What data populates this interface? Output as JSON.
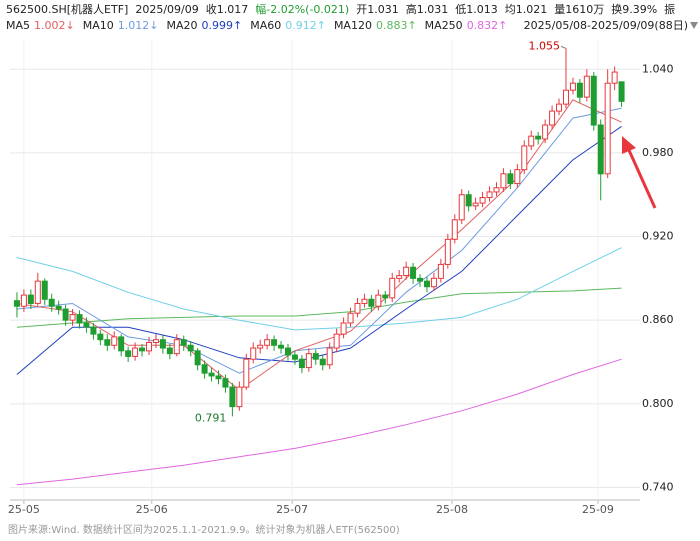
{
  "chart_data": {
    "type": "candlestick",
    "header": [
      "562500.SH[机器人ETF]",
      "2025/09/09",
      "收1.017",
      "幅-2.02%(-0.021)",
      "开1.031",
      "高1.031",
      "低1.013",
      "均1.021",
      "量1610万",
      "换9.39%",
      "振"
    ],
    "range_label": "2025/05/08-2025/09/09(88日)",
    "footer": "图片来源:Wind. 数据统计区间为2025.1.1-2021.9.9。统计对象为机器人ETF(562500)",
    "up_color": "#e8383d",
    "down_color": "#1f9d31",
    "candles": [
      [
        0.874,
        0.88,
        0.862,
        0.87
      ],
      [
        0.87,
        0.882,
        0.866,
        0.878
      ],
      [
        0.878,
        0.882,
        0.868,
        0.872
      ],
      [
        0.872,
        0.894,
        0.87,
        0.888
      ],
      [
        0.888,
        0.89,
        0.871,
        0.875
      ],
      [
        0.875,
        0.879,
        0.866,
        0.87
      ],
      [
        0.87,
        0.874,
        0.864,
        0.868
      ],
      [
        0.868,
        0.871,
        0.856,
        0.86
      ],
      [
        0.86,
        0.868,
        0.856,
        0.864
      ],
      [
        0.864,
        0.867,
        0.854,
        0.858
      ],
      [
        0.858,
        0.862,
        0.851,
        0.855
      ],
      [
        0.855,
        0.858,
        0.846,
        0.85
      ],
      [
        0.85,
        0.853,
        0.842,
        0.846
      ],
      [
        0.846,
        0.85,
        0.838,
        0.842
      ],
      [
        0.842,
        0.852,
        0.839,
        0.848
      ],
      [
        0.848,
        0.85,
        0.834,
        0.838
      ],
      [
        0.838,
        0.841,
        0.83,
        0.834
      ],
      [
        0.834,
        0.844,
        0.831,
        0.84
      ],
      [
        0.84,
        0.843,
        0.834,
        0.838
      ],
      [
        0.838,
        0.848,
        0.835,
        0.844
      ],
      [
        0.844,
        0.85,
        0.84,
        0.846
      ],
      [
        0.846,
        0.849,
        0.836,
        0.84
      ],
      [
        0.84,
        0.843,
        0.832,
        0.836
      ],
      [
        0.836,
        0.85,
        0.834,
        0.846
      ],
      [
        0.846,
        0.849,
        0.838,
        0.842
      ],
      [
        0.842,
        0.845,
        0.834,
        0.838
      ],
      [
        0.838,
        0.84,
        0.824,
        0.828
      ],
      [
        0.828,
        0.831,
        0.818,
        0.822
      ],
      [
        0.822,
        0.826,
        0.816,
        0.82
      ],
      [
        0.82,
        0.824,
        0.814,
        0.818
      ],
      [
        0.818,
        0.821,
        0.808,
        0.812
      ],
      [
        0.812,
        0.815,
        0.791,
        0.798
      ],
      [
        0.798,
        0.816,
        0.795,
        0.812
      ],
      [
        0.812,
        0.836,
        0.81,
        0.832
      ],
      [
        0.832,
        0.844,
        0.829,
        0.84
      ],
      [
        0.84,
        0.846,
        0.836,
        0.842
      ],
      [
        0.842,
        0.85,
        0.839,
        0.846
      ],
      [
        0.846,
        0.849,
        0.838,
        0.842
      ],
      [
        0.842,
        0.845,
        0.836,
        0.84
      ],
      [
        0.84,
        0.843,
        0.831,
        0.835
      ],
      [
        0.835,
        0.838,
        0.828,
        0.832
      ],
      [
        0.832,
        0.835,
        0.822,
        0.826
      ],
      [
        0.826,
        0.84,
        0.823,
        0.836
      ],
      [
        0.836,
        0.839,
        0.828,
        0.832
      ],
      [
        0.832,
        0.835,
        0.824,
        0.828
      ],
      [
        0.828,
        0.844,
        0.825,
        0.84
      ],
      [
        0.84,
        0.854,
        0.837,
        0.85
      ],
      [
        0.85,
        0.862,
        0.847,
        0.858
      ],
      [
        0.858,
        0.869,
        0.855,
        0.865
      ],
      [
        0.865,
        0.876,
        0.862,
        0.872
      ],
      [
        0.872,
        0.879,
        0.869,
        0.875
      ],
      [
        0.875,
        0.878,
        0.866,
        0.87
      ],
      [
        0.87,
        0.882,
        0.867,
        0.878
      ],
      [
        0.878,
        0.881,
        0.872,
        0.876
      ],
      [
        0.876,
        0.894,
        0.873,
        0.89
      ],
      [
        0.89,
        0.896,
        0.887,
        0.892
      ],
      [
        0.892,
        0.902,
        0.889,
        0.898
      ],
      [
        0.898,
        0.901,
        0.886,
        0.89
      ],
      [
        0.89,
        0.893,
        0.884,
        0.888
      ],
      [
        0.888,
        0.891,
        0.88,
        0.884
      ],
      [
        0.884,
        0.894,
        0.881,
        0.89
      ],
      [
        0.89,
        0.904,
        0.887,
        0.9
      ],
      [
        0.9,
        0.922,
        0.897,
        0.918
      ],
      [
        0.918,
        0.936,
        0.915,
        0.932
      ],
      [
        0.932,
        0.954,
        0.929,
        0.95
      ],
      [
        0.95,
        0.953,
        0.938,
        0.942
      ],
      [
        0.942,
        0.948,
        0.939,
        0.944
      ],
      [
        0.944,
        0.952,
        0.941,
        0.948
      ],
      [
        0.948,
        0.956,
        0.945,
        0.952
      ],
      [
        0.952,
        0.959,
        0.949,
        0.955
      ],
      [
        0.955,
        0.969,
        0.952,
        0.965
      ],
      [
        0.965,
        0.968,
        0.954,
        0.958
      ],
      [
        0.958,
        0.972,
        0.955,
        0.968
      ],
      [
        0.968,
        0.989,
        0.965,
        0.985
      ],
      [
        0.985,
        0.996,
        0.982,
        0.992
      ],
      [
        0.992,
        0.995,
        0.986,
        0.99
      ],
      [
        0.99,
        1.004,
        0.987,
        1.0
      ],
      [
        1.0,
        1.014,
        0.997,
        1.01
      ],
      [
        1.01,
        1.019,
        1.007,
        1.015
      ],
      [
        1.015,
        1.055,
        1.012,
        1.025
      ],
      [
        1.025,
        1.034,
        1.022,
        1.03
      ],
      [
        1.03,
        1.033,
        1.016,
        1.02
      ],
      [
        1.02,
        1.04,
        1.017,
        1.035
      ],
      [
        1.035,
        1.038,
        0.996,
        1.0
      ],
      [
        1.0,
        1.004,
        0.946,
        0.965
      ],
      [
        0.965,
        1.04,
        0.962,
        1.03
      ],
      [
        1.03,
        1.042,
        1.025,
        1.038
      ],
      [
        1.031,
        1.031,
        1.013,
        1.017
      ]
    ],
    "series": [
      {
        "name": "MA5",
        "color": "#e06060",
        "legend_label": "1.002↓",
        "x": [
          0,
          8,
          16,
          24,
          32,
          40,
          48,
          56,
          64,
          72,
          80,
          87
        ],
        "values": [
          0.872,
          0.866,
          0.842,
          0.842,
          0.81,
          0.838,
          0.852,
          0.89,
          0.925,
          0.962,
          1.018,
          1.002
        ]
      },
      {
        "name": "MA10",
        "color": "#6e9be0",
        "legend_label": "1.012↓",
        "x": [
          0,
          8,
          16,
          24,
          32,
          40,
          48,
          56,
          64,
          72,
          80,
          87
        ],
        "values": [
          0.868,
          0.872,
          0.848,
          0.842,
          0.822,
          0.838,
          0.842,
          0.88,
          0.91,
          0.955,
          1.005,
          1.012
        ]
      },
      {
        "name": "MA20",
        "color": "#1f3fbf",
        "legend_label": "0.999↑",
        "x": [
          0,
          8,
          16,
          24,
          32,
          40,
          48,
          56,
          64,
          72,
          80,
          87
        ],
        "values": [
          0.821,
          0.855,
          0.855,
          0.846,
          0.833,
          0.83,
          0.84,
          0.868,
          0.895,
          0.935,
          0.975,
          0.999
        ]
      },
      {
        "name": "MA60",
        "color": "#6fd0e8",
        "legend_label": "0.912↑",
        "x": [
          0,
          8,
          16,
          24,
          32,
          40,
          48,
          56,
          64,
          72,
          80,
          87
        ],
        "values": [
          0.905,
          0.895,
          0.88,
          0.868,
          0.86,
          0.853,
          0.855,
          0.858,
          0.862,
          0.875,
          0.895,
          0.912
        ]
      },
      {
        "name": "MA120",
        "color": "#5cb85c",
        "legend_label": "0.883↑",
        "x": [
          0,
          8,
          16,
          24,
          32,
          40,
          48,
          56,
          64,
          72,
          80,
          87
        ],
        "values": [
          0.855,
          0.858,
          0.861,
          0.862,
          0.863,
          0.863,
          0.866,
          0.873,
          0.879,
          0.88,
          0.881,
          0.883
        ]
      },
      {
        "name": "MA250",
        "color": "#e066e0",
        "legend_label": "0.832↑",
        "x": [
          0,
          8,
          16,
          24,
          32,
          40,
          48,
          56,
          64,
          72,
          80,
          87
        ],
        "values": [
          0.742,
          0.746,
          0.751,
          0.756,
          0.762,
          0.768,
          0.776,
          0.785,
          0.795,
          0.807,
          0.821,
          0.832
        ]
      }
    ],
    "xlim": [
      -1,
      88.5
    ],
    "xticks": [
      {
        "value": 1,
        "label": "25-05"
      },
      {
        "value": 19.4,
        "label": "25-06"
      },
      {
        "value": 39.6,
        "label": "25-07"
      },
      {
        "value": 62.6,
        "label": "25-08"
      },
      {
        "value": 83.6,
        "label": "25-09"
      }
    ],
    "ylim": [
      0.731,
      1.061
    ],
    "yticks": [
      {
        "value": 1.04,
        "label": "1.040"
      },
      {
        "value": 0.98,
        "label": "0.980"
      },
      {
        "value": 0.92,
        "label": "0.920"
      },
      {
        "value": 0.86,
        "label": "0.860"
      },
      {
        "value": 0.8,
        "label": "0.800"
      },
      {
        "value": 0.74,
        "label": "0.740"
      }
    ],
    "grid": true
  }
}
